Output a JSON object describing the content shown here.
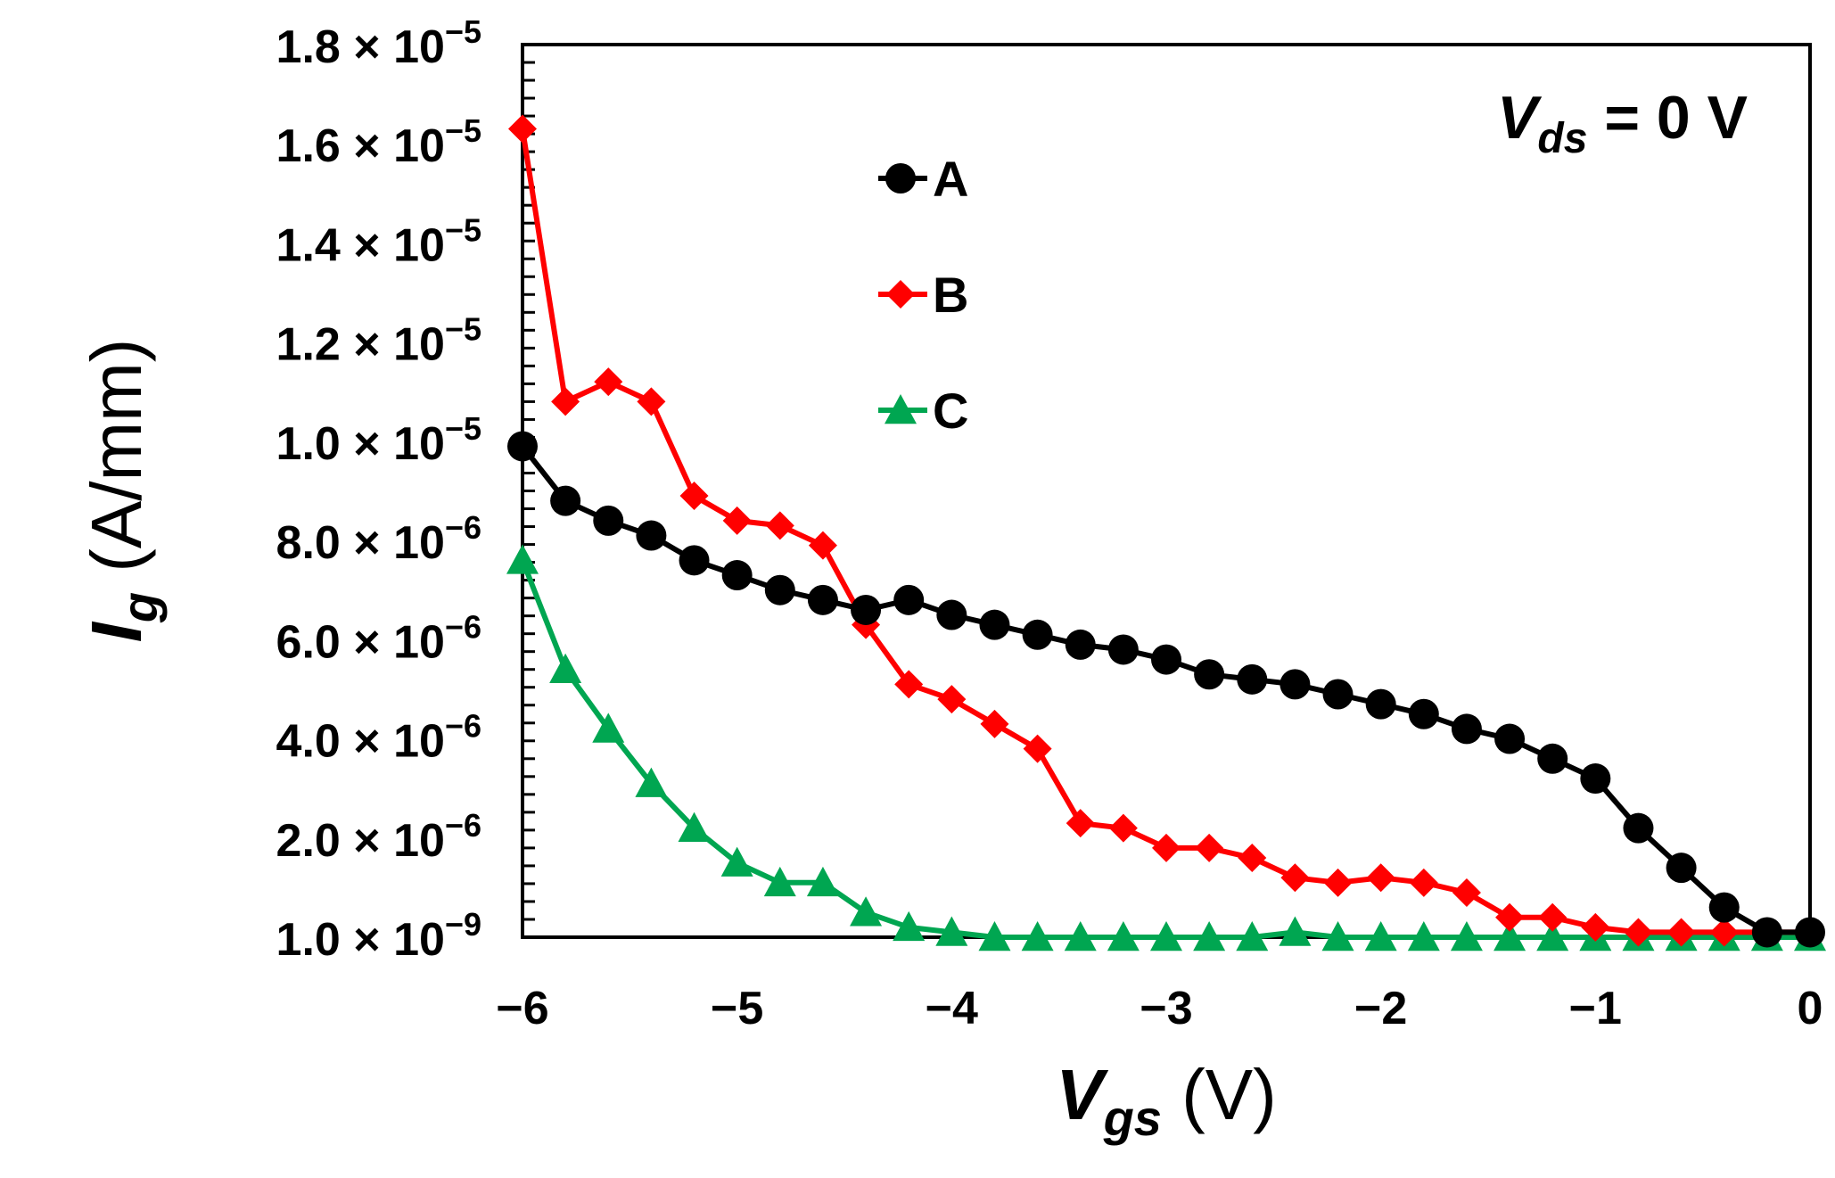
{
  "chart_data": {
    "type": "line",
    "xlabel": {
      "main": "V",
      "sub": "gs",
      "unit": " (V)"
    },
    "ylabel": {
      "main": "I",
      "sub": "g",
      "unit": " (A/mm)"
    },
    "annotation": {
      "main": "V",
      "sub": "ds",
      "rest": " = 0 V"
    },
    "xlim": [
      -6,
      0
    ],
    "ylim": [
      0,
      1.8e-05
    ],
    "x_ticks": [
      {
        "value": -6,
        "label": "−6"
      },
      {
        "value": -5,
        "label": "−5"
      },
      {
        "value": -4,
        "label": "−4"
      },
      {
        "value": -3,
        "label": "−3"
      },
      {
        "value": -2,
        "label": "−2"
      },
      {
        "value": -1,
        "label": "−1"
      },
      {
        "value": 0,
        "label": "0"
      }
    ],
    "y_ticks": [
      {
        "value": 0,
        "mantissa": "1.0",
        "times": "×",
        "base": "10",
        "exp": "−9"
      },
      {
        "value": 2e-06,
        "mantissa": "2.0",
        "times": "×",
        "base": "10",
        "exp": "−6"
      },
      {
        "value": 4e-06,
        "mantissa": "4.0",
        "times": "×",
        "base": "10",
        "exp": "−6"
      },
      {
        "value": 6e-06,
        "mantissa": "6.0",
        "times": "×",
        "base": "10",
        "exp": "−6"
      },
      {
        "value": 8e-06,
        "mantissa": "8.0",
        "times": "×",
        "base": "10",
        "exp": "−6"
      },
      {
        "value": 1e-05,
        "mantissa": "1.0",
        "times": "×",
        "base": "10",
        "exp": "−5"
      },
      {
        "value": 1.2e-05,
        "mantissa": "1.2",
        "times": "×",
        "base": "10",
        "exp": "−5"
      },
      {
        "value": 1.4e-05,
        "mantissa": "1.4",
        "times": "×",
        "base": "10",
        "exp": "−5"
      },
      {
        "value": 1.6e-05,
        "mantissa": "1.6",
        "times": "×",
        "base": "10",
        "exp": "−5"
      },
      {
        "value": 1.8e-05,
        "mantissa": "1.8",
        "times": "×",
        "base": "10",
        "exp": "−5"
      }
    ],
    "x": [
      -6.0,
      -5.8,
      -5.6,
      -5.4,
      -5.2,
      -5.0,
      -4.8,
      -4.6,
      -4.4,
      -4.2,
      -4.0,
      -3.8,
      -3.6,
      -3.4,
      -3.2,
      -3.0,
      -2.8,
      -2.6,
      -2.4,
      -2.2,
      -2.0,
      -1.8,
      -1.6,
      -1.4,
      -1.2,
      -1.0,
      -0.8,
      -0.6,
      -0.4,
      -0.2,
      0.0
    ],
    "series": [
      {
        "name": "A",
        "color": "#000000",
        "marker": "circle",
        "values": [
          9.9e-06,
          8.8e-06,
          8.4e-06,
          8.1e-06,
          7.6e-06,
          7.3e-06,
          7e-06,
          6.8e-06,
          6.6e-06,
          6.8e-06,
          6.5e-06,
          6.3e-06,
          6.1e-06,
          5.9e-06,
          5.8e-06,
          5.6e-06,
          5.3e-06,
          5.2e-06,
          5.1e-06,
          4.9e-06,
          4.7e-06,
          4.5e-06,
          4.2e-06,
          4e-06,
          3.6e-06,
          3.2e-06,
          2.2e-06,
          1.4e-06,
          6e-07,
          1e-07,
          1e-07
        ]
      },
      {
        "name": "B",
        "color": "#ff0000",
        "marker": "diamond",
        "values": [
          1.63e-05,
          1.08e-05,
          1.12e-05,
          1.08e-05,
          8.9e-06,
          8.4e-06,
          8.3e-06,
          7.9e-06,
          6.3e-06,
          5.1e-06,
          4.8e-06,
          4.3e-06,
          3.8e-06,
          2.3e-06,
          2.2e-06,
          1.8e-06,
          1.8e-06,
          1.6e-06,
          1.2e-06,
          1.1e-06,
          1.2e-06,
          1.1e-06,
          9e-07,
          4e-07,
          4e-07,
          2e-07,
          1e-07,
          1e-07,
          1e-07,
          1e-07,
          1e-07
        ]
      },
      {
        "name": "C",
        "color": "#00a651",
        "marker": "triangle",
        "values": [
          7.6e-06,
          5.4e-06,
          4.2e-06,
          3.1e-06,
          2.2e-06,
          1.5e-06,
          1.1e-06,
          1.1e-06,
          5e-07,
          2e-07,
          1e-07,
          0.0,
          0.0,
          0.0,
          0.0,
          0.0,
          0.0,
          0.0,
          1e-07,
          0.0,
          0.0,
          0.0,
          0.0,
          0.0,
          0.0,
          0.0,
          0.0,
          0.0,
          0.0,
          0.0,
          0.0
        ]
      }
    ]
  }
}
